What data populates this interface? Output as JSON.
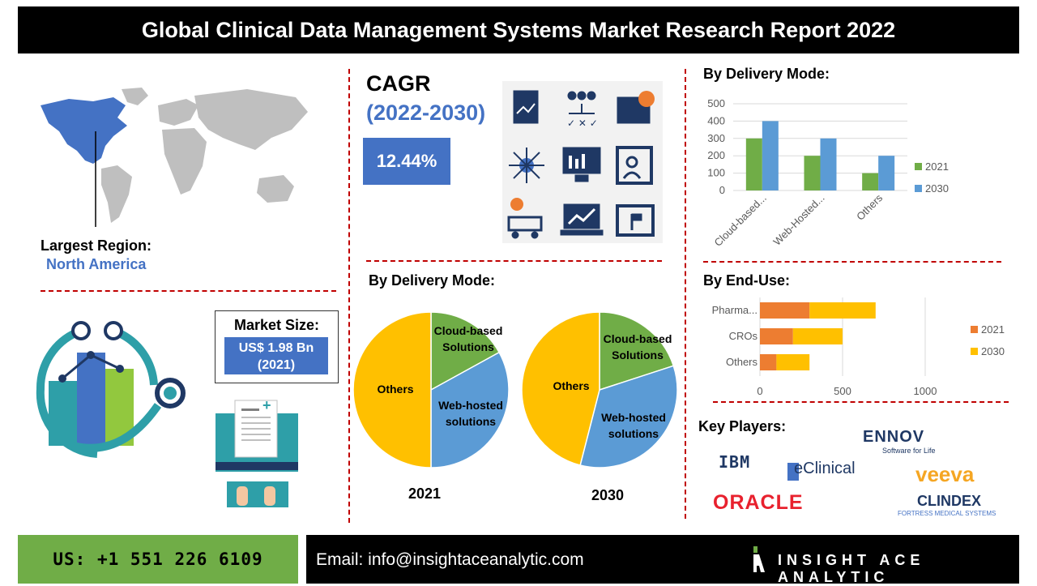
{
  "header": {
    "title": "Global Clinical Data Management Systems Market Research Report 2022"
  },
  "region": {
    "label": "Largest Region:",
    "value": "North America"
  },
  "cagr": {
    "title": "CAGR",
    "years": "(2022-2030)",
    "value": "12.44%"
  },
  "market_size": {
    "title": "Market Size:",
    "value_line1": "US$ 1.98 Bn",
    "value_line2": "(2021)"
  },
  "pie_section": {
    "title": "By Delivery Mode:"
  },
  "key_players": {
    "title": "Key Players:",
    "logos": [
      "IBM",
      "eClinical",
      "ENNOV",
      "Software for Life",
      "veeva",
      "ORACLE",
      "CLINDEX",
      "FORTRESS MEDICAL SYSTEMS"
    ]
  },
  "footer": {
    "phone": "US: +1 551 226 6109",
    "email": "Email: info@insightaceanalytic.com",
    "brand": "INSIGHT ACE ANALYTIC"
  },
  "colors": {
    "blue": "#4472c4",
    "orange": "#ed7d31",
    "yellow": "#ffc000",
    "green": "#70ad47",
    "light_blue": "#5b9bd5",
    "red": "#c00000"
  },
  "chart_data": [
    {
      "type": "bar",
      "title": "By Delivery Mode:",
      "categories": [
        "Cloud-based...",
        "Web-Hosted...",
        "Others"
      ],
      "series": [
        {
          "name": "2021",
          "values": [
            300,
            200,
            100
          ],
          "color": "#70ad47"
        },
        {
          "name": "2030",
          "values": [
            400,
            300,
            200
          ],
          "color": "#5b9bd5"
        }
      ],
      "ylim": [
        0,
        500
      ],
      "yticks": [
        "0",
        "100",
        "200",
        "300",
        "400",
        "500"
      ],
      "grid": true,
      "legend": "right"
    },
    {
      "type": "bar",
      "orientation": "horizontal-stacked",
      "title": "By End-Use:",
      "categories": [
        "Pharma...",
        "CROs",
        "Others"
      ],
      "series": [
        {
          "name": "2021",
          "values": [
            300,
            200,
            100
          ],
          "color": "#ed7d31"
        },
        {
          "name": "2030",
          "values": [
            400,
            300,
            200
          ],
          "color": "#ffc000"
        }
      ],
      "xlim": [
        0,
        1000
      ],
      "xticks": [
        "0",
        "500",
        "1000"
      ],
      "grid": true,
      "legend": "right"
    },
    {
      "type": "pie",
      "title": "2021",
      "slices": [
        {
          "label": "Cloud-based Solutions",
          "value": 17,
          "color": "#70ad47"
        },
        {
          "label": "Web-hosted solutions",
          "value": 33,
          "color": "#5b9bd5"
        },
        {
          "label": "Others",
          "value": 50,
          "color": "#ffc000"
        }
      ]
    },
    {
      "type": "pie",
      "title": "2030",
      "slices": [
        {
          "label": "Cloud-based Solutions",
          "value": 20,
          "color": "#70ad47"
        },
        {
          "label": "Web-hosted solutions",
          "value": 34,
          "color": "#5b9bd5"
        },
        {
          "label": "Others",
          "value": 46,
          "color": "#ffc000"
        }
      ]
    }
  ]
}
